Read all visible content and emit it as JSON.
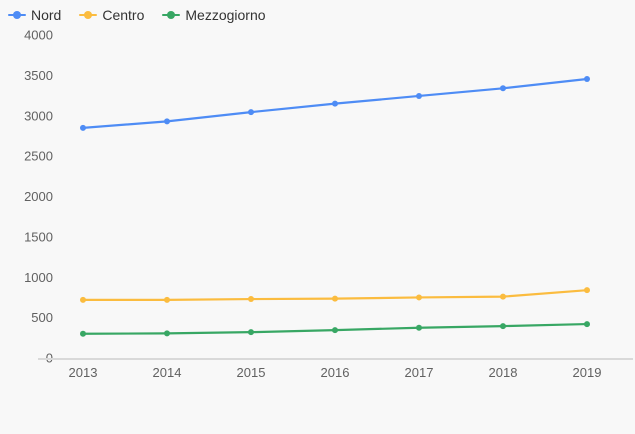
{
  "chart_data": {
    "type": "line",
    "title": "",
    "xlabel": "",
    "ylabel": "",
    "categories": [
      "2013",
      "2014",
      "2015",
      "2016",
      "2017",
      "2018",
      "2019"
    ],
    "series": [
      {
        "name": "Nord",
        "color": "#4e8cf5",
        "values": [
          2850,
          2930,
          3045,
          3150,
          3245,
          3340,
          3455
        ]
      },
      {
        "name": "Centro",
        "color": "#fbbc3f",
        "values": [
          720,
          720,
          730,
          735,
          750,
          760,
          840
        ]
      },
      {
        "name": "Mezzogiorno",
        "color": "#38a764",
        "values": [
          300,
          305,
          320,
          345,
          375,
          395,
          420
        ]
      }
    ],
    "ylim": [
      0,
      4000
    ],
    "ytick_step": 500,
    "yticks": [
      "0",
      "500",
      "1000",
      "1500",
      "2000",
      "2500",
      "3000",
      "3500",
      "4000"
    ],
    "grid": false,
    "legend_position": "top-left",
    "background_color": "#f8f8f8",
    "axis_line_color": "#d9d9d9",
    "tick_label_color": "#616161",
    "legend_text_color": "#333333"
  }
}
